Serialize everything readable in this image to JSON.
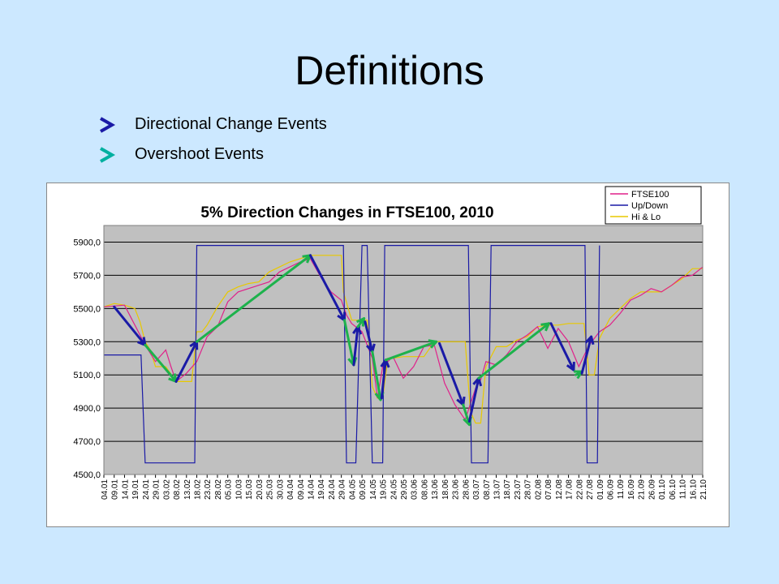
{
  "slide": {
    "title": "Definitions",
    "legend": [
      {
        "label": "Directional Change Events",
        "gradient": [
          "#e0218a",
          "#1a1aa6"
        ]
      },
      {
        "label": "Overshoot Events",
        "gradient": [
          "#2bb34a",
          "#00b0a0"
        ]
      }
    ]
  },
  "chart_data": {
    "type": "line",
    "title": "5% Direction Changes in FTSE100, 2010",
    "ylim": [
      4500,
      6000
    ],
    "yticks": [
      "4500,0",
      "4700,0",
      "4900,0",
      "5100,0",
      "5300,0",
      "5500,0",
      "5700,0",
      "5900,0"
    ],
    "grid": true,
    "legend_position": "top-right",
    "x_labels": [
      "04.01",
      "09.01",
      "14.01",
      "19.01",
      "24.01",
      "29.01",
      "03.02",
      "08.02",
      "13.02",
      "18.02",
      "23.02",
      "28.02",
      "05.03",
      "10.03",
      "15.03",
      "20.03",
      "25.03",
      "30.03",
      "04.04",
      "09.04",
      "14.04",
      "19.04",
      "24.04",
      "29.04",
      "04.05",
      "09.05",
      "14.05",
      "19.05",
      "24.05",
      "29.05",
      "03.06",
      "08.06",
      "13.06",
      "18.06",
      "23.06",
      "28.06",
      "03.07",
      "08.07",
      "13.07",
      "18.07",
      "23.07",
      "28.07",
      "02.08",
      "07.08",
      "12.08",
      "17.08",
      "22.08",
      "27.08",
      "01.09",
      "06.09",
      "11.09",
      "16.09",
      "21.09",
      "26.09",
      "01.10",
      "06.10",
      "11.10",
      "16.10",
      "21.10"
    ],
    "series": [
      {
        "name": "FTSE100",
        "color": "#e0218a",
        "x": [
          0,
          2,
          3,
          4,
          5,
          6,
          6.5,
          7,
          8,
          9,
          10,
          11,
          12,
          13,
          14,
          15,
          16,
          17,
          18,
          19,
          20,
          21,
          22,
          23,
          23.5,
          24,
          25,
          26,
          26.5,
          27,
          28,
          29,
          30,
          31,
          32,
          33,
          34,
          35,
          36,
          36.5,
          37,
          38,
          39,
          40,
          41,
          42,
          43,
          44,
          45,
          46,
          47,
          48,
          49,
          50,
          51,
          52,
          53,
          54,
          55,
          56,
          57,
          58
        ],
        "y": [
          5510,
          5520,
          5400,
          5280,
          5180,
          5250,
          5150,
          5060,
          5110,
          5180,
          5330,
          5390,
          5540,
          5600,
          5620,
          5640,
          5660,
          5720,
          5750,
          5780,
          5800,
          5690,
          5600,
          5550,
          5460,
          5410,
          5360,
          5200,
          4960,
          5150,
          5210,
          5080,
          5150,
          5270,
          5280,
          5050,
          4920,
          4830,
          5020,
          5070,
          5180,
          5160,
          5220,
          5300,
          5340,
          5390,
          5260,
          5380,
          5300,
          5150,
          5280,
          5360,
          5400,
          5470,
          5550,
          5580,
          5620,
          5600,
          5640,
          5690,
          5700,
          5750
        ]
      },
      {
        "name": "Up/Down",
        "color": "#1a1aa6",
        "x": [
          0,
          3.6,
          4,
          8.8,
          9,
          23.2,
          23.5,
          24.4,
          25,
          25.5,
          26,
          26.5,
          27,
          27.2,
          28.3,
          28.5,
          35.3,
          35.6,
          37.2,
          37.5,
          46.6,
          46.8,
          47.8,
          48
        ],
        "y": [
          5220,
          5220,
          4570,
          4570,
          5880,
          5880,
          4570,
          4570,
          5880,
          5880,
          4570,
          4570,
          4570,
          5880,
          5880,
          5880,
          5880,
          4570,
          4570,
          5880,
          5880,
          4570,
          4570,
          5880
        ]
      },
      {
        "name": "Hi & Lo",
        "color": "#e8c800",
        "x": [
          0,
          1,
          2,
          3,
          3.5,
          4,
          4.5,
          5,
          6,
          7,
          7.5,
          8,
          8.5,
          9,
          9.5,
          10,
          11,
          12,
          13,
          14,
          15,
          16,
          17,
          18,
          19,
          20,
          20.5,
          23,
          23.2,
          24,
          24.5,
          25,
          25.5,
          26,
          26.5,
          27,
          27.5,
          28,
          29,
          30,
          31,
          32,
          33,
          34,
          35,
          35.5,
          36,
          36.5,
          37,
          38,
          39,
          40,
          41,
          42,
          43,
          44,
          45,
          46,
          46.5,
          47,
          47.5,
          48,
          49,
          50,
          51,
          52,
          53,
          54,
          55,
          56,
          57,
          58
        ],
        "y": [
          5510,
          5530,
          5520,
          5500,
          5420,
          5300,
          5250,
          5150,
          5150,
          5060,
          5060,
          5060,
          5060,
          5360,
          5360,
          5400,
          5510,
          5600,
          5630,
          5650,
          5660,
          5720,
          5750,
          5780,
          5800,
          5820,
          5820,
          5820,
          5600,
          5430,
          5430,
          5430,
          5430,
          5030,
          4960,
          4960,
          5200,
          5200,
          5210,
          5210,
          5210,
          5300,
          5300,
          5300,
          5300,
          4880,
          4810,
          4810,
          5150,
          5270,
          5270,
          5310,
          5330,
          5390,
          5400,
          5400,
          5410,
          5410,
          5410,
          5100,
          5100,
          5320,
          5440,
          5500,
          5560,
          5600,
          5600,
          5600,
          5640,
          5680,
          5740,
          5740
        ]
      }
    ]
  }
}
